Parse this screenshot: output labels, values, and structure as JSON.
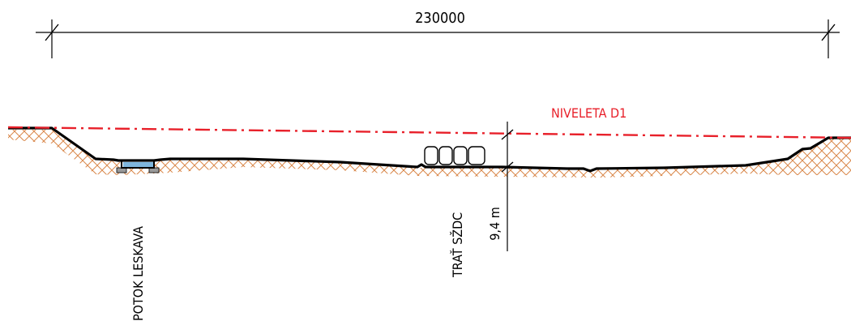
{
  "dimension": {
    "overall_length": "230000"
  },
  "labels": {
    "niveleta": "NIVELETA D1",
    "stream": "POTOK LESKAVA",
    "railway": "TRAŤ SŽDC",
    "clearance": "9,4 m"
  },
  "colors": {
    "line": "#000000",
    "niveleta": "#e8202a",
    "soil_hatch": "#d9874a",
    "water": "#7fb6dd",
    "bridge_support": "#9a9a9a"
  },
  "icons": {
    "railway_cars": "railway-wagons-icon"
  }
}
